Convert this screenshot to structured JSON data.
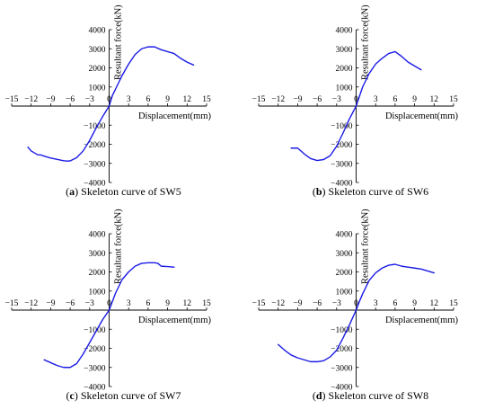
{
  "chart_data": [
    {
      "type": "line",
      "panel_label": "a",
      "caption": "Skeleton curve of SW5",
      "xlabel": "Displacement(mm)",
      "ylabel": "Resultant force(kN)",
      "xlim": [
        -15,
        15
      ],
      "ylim": [
        -4000,
        4000
      ],
      "xticks": [
        -15,
        -12,
        -9,
        -6,
        -3,
        0,
        3,
        6,
        9,
        12,
        15
      ],
      "yticks": [
        -4000,
        -3000,
        -2000,
        -1000,
        0,
        1000,
        2000,
        3000,
        4000
      ],
      "color": "#1a1ae6",
      "x": [
        -12.5,
        -12,
        -11.5,
        -11,
        -10.5,
        -10,
        -9,
        -8,
        -7,
        -6.5,
        -6,
        -5,
        -4,
        -3,
        -2,
        -1,
        0,
        0.5,
        1,
        2,
        3,
        4,
        5,
        6,
        7,
        8,
        9,
        10,
        11,
        12,
        13
      ],
      "y": [
        -2150,
        -2350,
        -2450,
        -2550,
        -2560,
        -2620,
        -2720,
        -2790,
        -2860,
        -2880,
        -2870,
        -2700,
        -2350,
        -1800,
        -1150,
        -550,
        0,
        550,
        900,
        1600,
        2200,
        2700,
        3000,
        3100,
        3100,
        2950,
        2850,
        2750,
        2500,
        2300,
        2150
      ]
    },
    {
      "type": "line",
      "panel_label": "b",
      "caption": "Skeleton curve of SW6",
      "xlabel": "Displacement(mm)",
      "ylabel": "Resultant force(kN)",
      "xlim": [
        -15,
        15
      ],
      "ylim": [
        -4000,
        4000
      ],
      "xticks": [
        -15,
        -12,
        -9,
        -6,
        -3,
        0,
        3,
        6,
        9,
        12,
        15
      ],
      "yticks": [
        -4000,
        -3000,
        -2000,
        -1000,
        0,
        1000,
        2000,
        3000,
        4000
      ],
      "color": "#1a1ae6",
      "x": [
        -10,
        -9,
        -8,
        -7,
        -6,
        -5,
        -4,
        -3,
        -2,
        -1,
        0,
        0.5,
        1,
        2,
        3,
        4,
        5,
        6,
        7,
        8,
        9,
        10
      ],
      "y": [
        -2200,
        -2200,
        -2500,
        -2750,
        -2850,
        -2800,
        -2600,
        -2100,
        -1400,
        -650,
        0,
        500,
        1000,
        1700,
        2200,
        2500,
        2750,
        2850,
        2600,
        2300,
        2100,
        1900
      ]
    },
    {
      "type": "line",
      "panel_label": "c",
      "caption": "Skeleton curve of SW7",
      "xlabel": "Displacement(mm)",
      "ylabel": "Resultant force(kN)",
      "xlim": [
        -15,
        15
      ],
      "ylim": [
        -4000,
        4000
      ],
      "xticks": [
        -15,
        -12,
        -9,
        -6,
        -3,
        0,
        3,
        6,
        9,
        12,
        15
      ],
      "yticks": [
        -4000,
        -3000,
        -2000,
        -1000,
        0,
        1000,
        2000,
        3000,
        4000
      ],
      "color": "#1a1ae6",
      "x": [
        -10,
        -9,
        -8,
        -7,
        -6,
        -5,
        -4,
        -3,
        -2,
        -1,
        0,
        0.5,
        1,
        2,
        3,
        4,
        5,
        6,
        7,
        7.5,
        8,
        9,
        10
      ],
      "y": [
        -2600,
        -2750,
        -2900,
        -3000,
        -3000,
        -2800,
        -2300,
        -1700,
        -1100,
        -500,
        0,
        450,
        900,
        1600,
        2000,
        2300,
        2450,
        2480,
        2480,
        2450,
        2300,
        2280,
        2250
      ]
    },
    {
      "type": "line",
      "panel_label": "d",
      "caption": "Skeleton curve of SW8",
      "xlabel": "Displacement(mm)",
      "ylabel": "Resultant force(kN)",
      "xlim": [
        -15,
        15
      ],
      "ylim": [
        -4000,
        4000
      ],
      "xticks": [
        -15,
        -12,
        -9,
        -6,
        -3,
        0,
        3,
        6,
        9,
        12,
        15
      ],
      "yticks": [
        -4000,
        -3000,
        -2000,
        -1000,
        0,
        1000,
        2000,
        3000,
        4000
      ],
      "color": "#1a1ae6",
      "x": [
        -12,
        -11,
        -10,
        -9,
        -8,
        -7,
        -6,
        -5,
        -4,
        -3,
        -2,
        -1,
        0,
        0.5,
        1,
        2,
        3,
        4,
        5,
        6,
        7,
        8,
        9,
        10,
        11,
        12
      ],
      "y": [
        -1800,
        -2100,
        -2350,
        -2500,
        -2600,
        -2700,
        -2700,
        -2650,
        -2450,
        -2100,
        -1450,
        -750,
        0,
        450,
        850,
        1550,
        1950,
        2200,
        2350,
        2400,
        2300,
        2250,
        2200,
        2150,
        2050,
        1950
      ]
    }
  ]
}
